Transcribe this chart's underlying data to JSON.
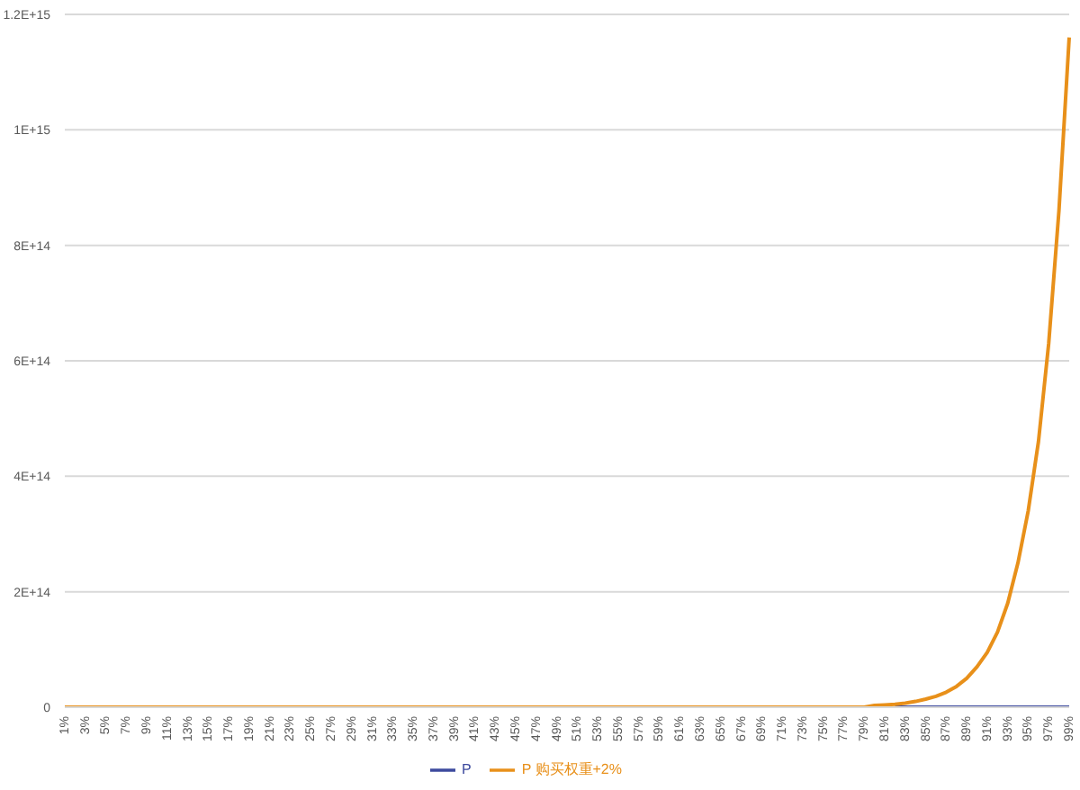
{
  "chart_data": {
    "type": "line",
    "categories": [
      "1%",
      null,
      "3%",
      null,
      "5%",
      null,
      "7%",
      null,
      "9%",
      null,
      "11%",
      null,
      "13%",
      null,
      "15%",
      null,
      "17%",
      null,
      "19%",
      null,
      "21%",
      null,
      "23%",
      null,
      "25%",
      null,
      "27%",
      null,
      "29%",
      null,
      "31%",
      null,
      "33%",
      null,
      "35%",
      null,
      "37%",
      null,
      "39%",
      null,
      "41%",
      null,
      "43%",
      null,
      "45%",
      null,
      "47%",
      null,
      "49%",
      null,
      "51%",
      null,
      "53%",
      null,
      "55%",
      null,
      "57%",
      null,
      "59%",
      null,
      "61%",
      null,
      "63%",
      null,
      "65%",
      null,
      "67%",
      null,
      "69%",
      null,
      "71%",
      null,
      "73%",
      null,
      "75%",
      null,
      "77%",
      null,
      "79%",
      null,
      "81%",
      null,
      "83%",
      null,
      "85%",
      null,
      "87%",
      null,
      "89%",
      null,
      "91%",
      null,
      "93%",
      null,
      "95%",
      null,
      "97%",
      null,
      "99%"
    ],
    "series": [
      {
        "name": "P",
        "color": "#3d4a9e",
        "values": [
          null,
          null,
          null,
          null,
          null,
          null,
          null,
          null,
          null,
          null,
          null,
          null,
          null,
          null,
          null,
          null,
          null,
          null,
          null,
          null,
          null,
          null,
          null,
          null,
          null,
          null,
          null,
          null,
          null,
          null,
          null,
          null,
          null,
          null,
          null,
          null,
          null,
          null,
          null,
          null,
          null,
          null,
          null,
          null,
          null,
          null,
          null,
          null,
          null,
          null,
          null,
          null,
          null,
          null,
          null,
          null,
          null,
          null,
          null,
          null,
          null,
          null,
          null,
          null,
          null,
          null,
          null,
          null,
          null,
          null,
          null,
          null,
          null,
          null,
          null,
          null,
          null,
          null,
          null,
          null,
          null,
          0,
          0,
          0,
          0,
          0,
          0,
          0,
          0,
          0,
          0,
          0,
          0,
          0,
          0,
          0,
          0,
          0,
          0
        ]
      },
      {
        "name": "P 购买权重+2%",
        "color": "#e8901a",
        "values": [
          0,
          0,
          0,
          0,
          0,
          0,
          0,
          0,
          0,
          0,
          0,
          0,
          0,
          0,
          0,
          0,
          0,
          0,
          0,
          0,
          0,
          0,
          0,
          0,
          0,
          0,
          0,
          0,
          0,
          0,
          0,
          0,
          0,
          0,
          0,
          0,
          0,
          0,
          0,
          0,
          0,
          0,
          0,
          0,
          0,
          0,
          0,
          0,
          0,
          0,
          0,
          0,
          0,
          0,
          0,
          0,
          0,
          0,
          0,
          0,
          0,
          0,
          0,
          0,
          0,
          0,
          0,
          0,
          0,
          0,
          0,
          0,
          0,
          0,
          0,
          0,
          0,
          0,
          0,
          3000000000000,
          4000000000000,
          5000000000000,
          7000000000000,
          10000000000000,
          14000000000000,
          19000000000000,
          26000000000000,
          36000000000000,
          50000000000000,
          70000000000000,
          95000000000000,
          130000000000000,
          180000000000000,
          250000000000000,
          340000000000000,
          460000000000000,
          630000000000000,
          860000000000000,
          1160000000000000
        ]
      }
    ],
    "ylim": [
      0,
      1200000000000000
    ],
    "yticks": [
      {
        "value": 0,
        "label": "0"
      },
      {
        "value": 200000000000000,
        "label": "2E+14"
      },
      {
        "value": 400000000000000,
        "label": "4E+14"
      },
      {
        "value": 600000000000000,
        "label": "6E+14"
      },
      {
        "value": 800000000000000,
        "label": "8E+14"
      },
      {
        "value": 1000000000000000,
        "label": "1E+15"
      },
      {
        "value": 1200000000000000,
        "label": "1.2E+15"
      }
    ],
    "grid": "y",
    "legend": "bottom",
    "marker": "none",
    "line_style": "solid"
  }
}
